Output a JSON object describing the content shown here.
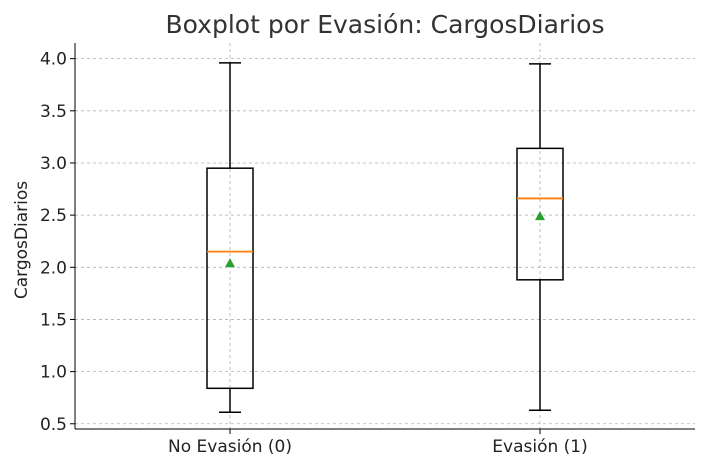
{
  "chart_data": {
    "type": "boxplot",
    "title": "Boxplot por Evasión: CargosDiarios",
    "xlabel": "",
    "ylabel": "CargosDiarios",
    "ylim": [
      0.45,
      4.15
    ],
    "yticks": [
      "0.5",
      "1.0",
      "1.5",
      "2.0",
      "2.5",
      "3.0",
      "3.5",
      "4.0"
    ],
    "ytick_values": [
      0.5,
      1.0,
      1.5,
      2.0,
      2.5,
      3.0,
      3.5,
      4.0
    ],
    "grid": true,
    "categories": [
      "No Evasión (0)",
      "Evasión (1)"
    ],
    "boxes": [
      {
        "whisker_low": 0.61,
        "q1": 0.84,
        "median": 2.15,
        "mean": 2.04,
        "q3": 2.95,
        "whisker_high": 3.96
      },
      {
        "whisker_low": 0.63,
        "q1": 1.88,
        "median": 2.66,
        "mean": 2.49,
        "q3": 3.14,
        "whisker_high": 3.95
      }
    ],
    "colors": {
      "box": "#000000",
      "median": "#ff7f0e",
      "mean": "#2ca02c",
      "grid": "#b0b0b0",
      "text": "#222222"
    }
  }
}
